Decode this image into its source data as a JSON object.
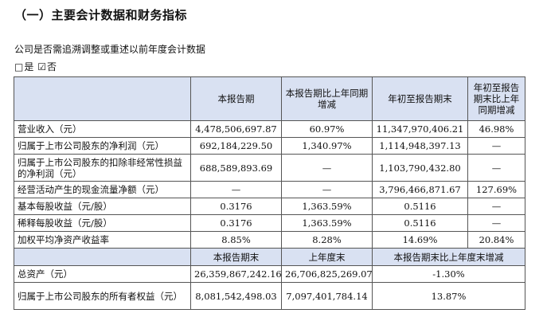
{
  "heading": "（一）主要会计数据和财务指标",
  "question": "公司是否需追溯调整或重述以前年度会计数据",
  "answer": {
    "yes_box": "□",
    "yes": "是",
    "no_box": "☑",
    "no": "否"
  },
  "header1": {
    "blank": "",
    "current": "本报告期",
    "current_change": "本报告期比上年同期增减",
    "ytd": "年初至报告期末",
    "ytd_change": "年初至报告期末比上年同期增减"
  },
  "rows": [
    {
      "label": "营业收入（元）",
      "current": "4,478,506,697.87",
      "current_change": "60.97%",
      "ytd": "11,347,970,406.21",
      "ytd_change": "46.98%"
    },
    {
      "label": "归属于上市公司股东的净利润（元）",
      "current": "692,184,229.50",
      "current_change": "1,340.97%",
      "ytd": "1,114,948,397.13",
      "ytd_change": "—"
    },
    {
      "label": "归属于上市公司股东的扣除非经常性损益的净利润（元）",
      "current": "688,589,893.69",
      "current_change": "—",
      "ytd": "1,103,790,432.80",
      "ytd_change": "—"
    },
    {
      "label": "经营活动产生的现金流量净额（元）",
      "current": "—",
      "current_change": "—",
      "ytd": "3,796,466,871.67",
      "ytd_change": "127.69%"
    },
    {
      "label": "基本每股收益（元/股）",
      "current": "0.3176",
      "current_change": "1,363.59%",
      "ytd": "0.5116",
      "ytd_change": "—"
    },
    {
      "label": "稀释每股收益（元/股）",
      "current": "0.3176",
      "current_change": "1,363.59%",
      "ytd": "0.5116",
      "ytd_change": "—"
    },
    {
      "label": "加权平均净资产收益率",
      "current": "8.85%",
      "current_change": "8.28%",
      "ytd": "14.69%",
      "ytd_change": "20.84%"
    }
  ],
  "header2": {
    "blank": "",
    "period_end": "本报告期末",
    "prior_year_end": "上年度末",
    "change": "本报告期末比上年度末增减"
  },
  "rows2": [
    {
      "label": "总资产（元）",
      "period_end": "26,359,867,242.16",
      "prior_year_end": "26,706,825,269.07",
      "change": "-1.30%"
    },
    {
      "label": "归属于上市公司股东的所有者权益（元）",
      "period_end": "8,081,542,498.03",
      "prior_year_end": "7,097,401,784.14",
      "change": "13.87%"
    }
  ]
}
